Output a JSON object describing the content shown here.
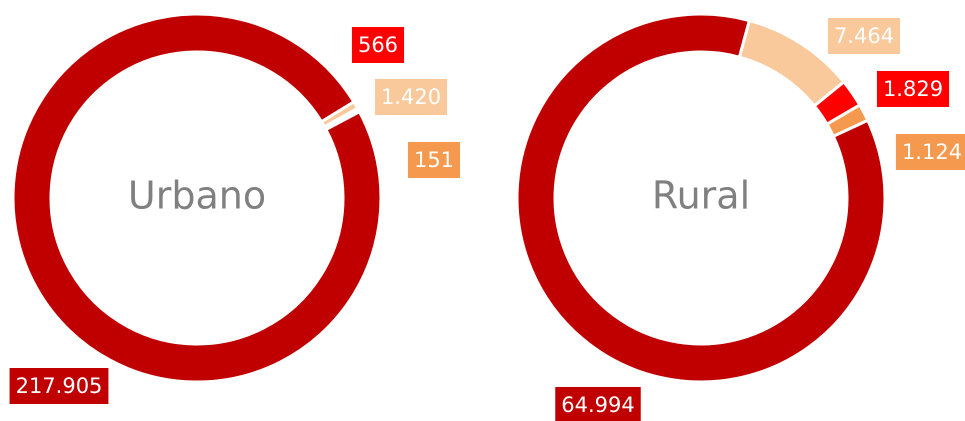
{
  "chart_data": [
    {
      "type": "donut",
      "center_label": "Urbano",
      "values": [
        217905,
        1420,
        566,
        151
      ],
      "value_labels": [
        "217.905",
        "1.420",
        "566",
        "151"
      ],
      "colors": [
        "#c00000",
        "#f9c89b",
        "#ff0000",
        "#f4994e"
      ]
    },
    {
      "type": "donut",
      "center_label": "Rural",
      "values": [
        64994,
        7464,
        1829,
        1124
      ],
      "value_labels": [
        "64.994",
        "7.464",
        "1.829",
        "1.124"
      ],
      "colors": [
        "#c00000",
        "#f9c89b",
        "#ff0000",
        "#f4994e"
      ]
    }
  ]
}
